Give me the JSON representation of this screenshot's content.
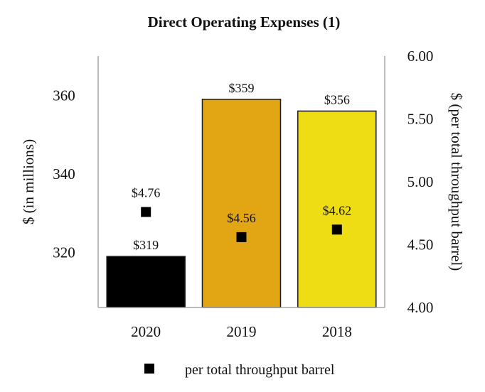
{
  "chart_data": {
    "type": "bar",
    "title": "Direct Operating Expenses (1)",
    "categories": [
      "2020",
      "2019",
      "2018"
    ],
    "series": [
      {
        "name": "Direct operating expenses",
        "axis": "left",
        "values": [
          319,
          359,
          356
        ],
        "labels": [
          "$319",
          "$359",
          "$356"
        ],
        "colors": [
          "#000000",
          "#E2A614",
          "#EEDD12"
        ]
      },
      {
        "name": "per total throughput barrel",
        "axis": "right",
        "marker": "square",
        "values": [
          4.76,
          4.56,
          4.62
        ],
        "labels": [
          "$4.76",
          "$4.56",
          "$4.62"
        ],
        "color": "#000000"
      }
    ],
    "ylabel": "$ (in millions)",
    "y2label": "$ (per total throughput barrel)",
    "ylim": [
      306,
      370
    ],
    "yticks": [
      "320",
      "340",
      "360"
    ],
    "ytick_values": [
      320,
      340,
      360
    ],
    "y2lim": [
      4.0,
      6.0
    ],
    "y2ticks": [
      "4.00",
      "4.50",
      "5.00",
      "5.50",
      "6.00"
    ],
    "y2tick_values": [
      4.0,
      4.5,
      5.0,
      5.5,
      6.0
    ],
    "legend": {
      "position": "bottom",
      "label": "per total throughput barrel"
    }
  }
}
